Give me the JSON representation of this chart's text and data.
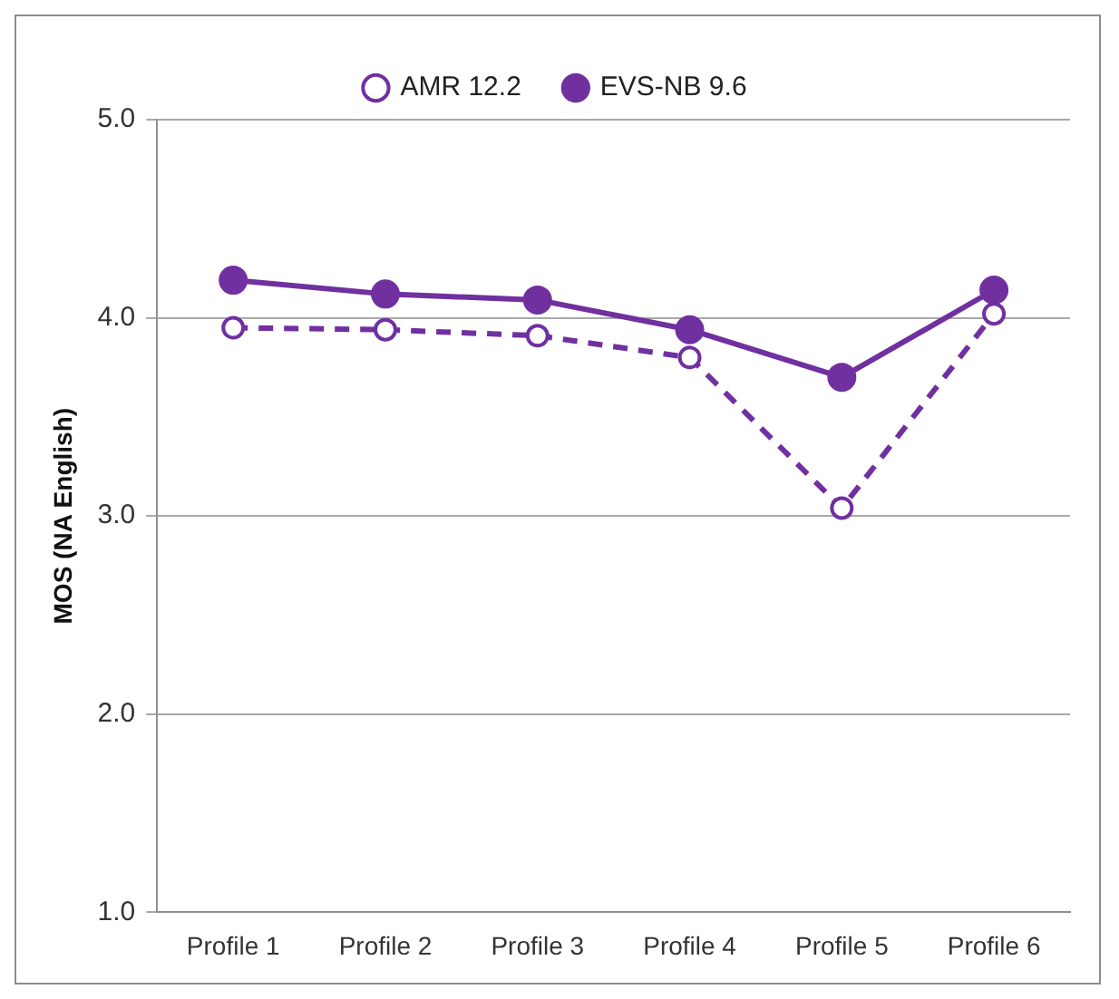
{
  "chart_data": {
    "type": "line",
    "ylabel": "MOS (NA English)",
    "categories": [
      "Profile 1",
      "Profile 2",
      "Profile 3",
      "Profile 4",
      "Profile 5",
      "Profile 6"
    ],
    "series": [
      {
        "name": "AMR 12.2",
        "color": "#7030a0",
        "line_style": "dashed",
        "values": [
          3.95,
          3.94,
          3.91,
          3.8,
          3.04,
          4.02
        ]
      },
      {
        "name": "EVS-NB 9.6",
        "color": "#7030a0",
        "line_style": "solid",
        "values": [
          4.19,
          4.12,
          4.09,
          3.94,
          3.7,
          4.14
        ]
      }
    ],
    "ylim": [
      1,
      5
    ],
    "yticks": [
      {
        "value": 1,
        "label": "1.0"
      },
      {
        "value": 2,
        "label": "2.0"
      },
      {
        "value": 3,
        "label": "3.0"
      },
      {
        "value": 4,
        "label": "4.0"
      },
      {
        "value": 5,
        "label": "5.0"
      }
    ],
    "grid": "y",
    "legend": "top",
    "marker": "circle"
  }
}
